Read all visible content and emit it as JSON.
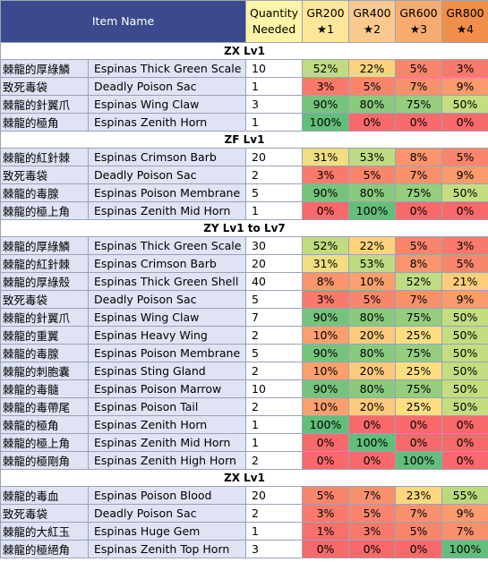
{
  "header": {
    "item_name": "Item Name",
    "qty_line1": "Quantity",
    "qty_line2": "Needed",
    "ranks": [
      {
        "gr": "GR200",
        "star": "★1",
        "color": "#ffe699"
      },
      {
        "gr": "GR400",
        "star": "★2",
        "color": "#f9c98f"
      },
      {
        "gr": "GR600",
        "star": "★3",
        "color": "#f6ab6f"
      },
      {
        "gr": "GR800",
        "star": "★4",
        "color": "#f08f4a"
      }
    ]
  },
  "sections": [
    {
      "title": "ZX Lv1",
      "rows": [
        {
          "zh": "棘龍的厚綠鱗",
          "en": "Espinas Thick Green Scale",
          "qty": "10",
          "pct": [
            "52%",
            "22%",
            "5%",
            "3%"
          ]
        },
        {
          "zh": "致死毒袋",
          "en": "Deadly Poison Sac",
          "qty": "1",
          "pct": [
            "3%",
            "5%",
            "7%",
            "9%"
          ]
        },
        {
          "zh": "棘龍的針翼爪",
          "en": "Espinas Wing Claw",
          "qty": "3",
          "pct": [
            "90%",
            "80%",
            "75%",
            "50%"
          ]
        },
        {
          "zh": "棘龍的極角",
          "en": "Espinas Zenith Horn",
          "qty": "1",
          "pct": [
            "100%",
            "0%",
            "0%",
            "0%"
          ]
        }
      ]
    },
    {
      "title": "ZF Lv1",
      "rows": [
        {
          "zh": "棘龍的紅針棘",
          "en": "Espinas Crimson Barb",
          "qty": "20",
          "pct": [
            "31%",
            "53%",
            "8%",
            "5%"
          ]
        },
        {
          "zh": "致死毒袋",
          "en": "Deadly Poison Sac",
          "qty": "2",
          "pct": [
            "3%",
            "5%",
            "7%",
            "9%"
          ]
        },
        {
          "zh": "棘龍的毒腺",
          "en": "Espinas Poison Membrane",
          "qty": "5",
          "pct": [
            "90%",
            "80%",
            "75%",
            "50%"
          ]
        },
        {
          "zh": "棘龍的極上角",
          "en": "Espinas Zenith Mid Horn",
          "qty": "1",
          "pct": [
            "0%",
            "100%",
            "0%",
            "0%"
          ]
        }
      ]
    },
    {
      "title": "ZY Lv1 to Lv7",
      "rows": [
        {
          "zh": "棘龍的厚綠鱗",
          "en": "Espinas Thick Green Scale",
          "qty": "30",
          "pct": [
            "52%",
            "22%",
            "5%",
            "3%"
          ]
        },
        {
          "zh": "棘龍的紅針棘",
          "en": "Espinas Crimson Barb",
          "qty": "20",
          "pct": [
            "31%",
            "53%",
            "8%",
            "5%"
          ]
        },
        {
          "zh": "棘龍的厚綠殼",
          "en": "Espinas Thick Green Shell",
          "qty": "40",
          "pct": [
            "8%",
            "10%",
            "52%",
            "21%"
          ]
        },
        {
          "zh": "致死毒袋",
          "en": "Deadly Poison Sac",
          "qty": "5",
          "pct": [
            "3%",
            "5%",
            "7%",
            "9%"
          ]
        },
        {
          "zh": "棘龍的針翼爪",
          "en": "Espinas Wing Claw",
          "qty": "7",
          "pct": [
            "90%",
            "80%",
            "75%",
            "50%"
          ]
        },
        {
          "zh": "棘龍的重翼",
          "en": "Espinas Heavy Wing",
          "qty": "2",
          "pct": [
            "10%",
            "20%",
            "25%",
            "50%"
          ]
        },
        {
          "zh": "棘龍的毒腺",
          "en": "Espinas Poison Membrane",
          "qty": "5",
          "pct": [
            "90%",
            "80%",
            "75%",
            "50%"
          ]
        },
        {
          "zh": "棘龍的刺胞囊",
          "en": "Espinas Sting Gland",
          "qty": "2",
          "pct": [
            "10%",
            "20%",
            "25%",
            "50%"
          ]
        },
        {
          "zh": "棘龍的毒髓",
          "en": "Espinas Poison Marrow",
          "qty": "10",
          "pct": [
            "90%",
            "80%",
            "75%",
            "50%"
          ]
        },
        {
          "zh": "棘龍的毒帶尾",
          "en": "Espinas Poison Tail",
          "qty": "2",
          "pct": [
            "10%",
            "20%",
            "25%",
            "50%"
          ]
        },
        {
          "zh": "棘龍的極角",
          "en": "Espinas Zenith Horn",
          "qty": "1",
          "pct": [
            "100%",
            "0%",
            "0%",
            "0%"
          ]
        },
        {
          "zh": "棘龍的極上角",
          "en": "Espinas Zenith Mid Horn",
          "qty": "1",
          "pct": [
            "0%",
            "100%",
            "0%",
            "0%"
          ]
        },
        {
          "zh": "棘龍的極剛角",
          "en": "Espinas Zenith High Horn",
          "qty": "2",
          "pct": [
            "0%",
            "0%",
            "100%",
            "0%"
          ]
        }
      ]
    },
    {
      "title": "ZX Lv1",
      "rows": [
        {
          "zh": "棘龍的毒血",
          "en": "Espinas Poison Blood",
          "qty": "20",
          "pct": [
            "5%",
            "7%",
            "23%",
            "55%"
          ]
        },
        {
          "zh": "致死毒袋",
          "en": "Deadly Poison Sac",
          "qty": "2",
          "pct": [
            "3%",
            "5%",
            "7%",
            "9%"
          ]
        },
        {
          "zh": "棘龍的大紅玉",
          "en": "Espinas Huge Gem",
          "qty": "1",
          "pct": [
            "1%",
            "3%",
            "5%",
            "7%"
          ]
        },
        {
          "zh": "棘龍的極絕角",
          "en": "Espinas Zenith Top Horn",
          "qty": "3",
          "pct": [
            "0%",
            "0%",
            "0%",
            "100%"
          ]
        }
      ]
    }
  ]
}
